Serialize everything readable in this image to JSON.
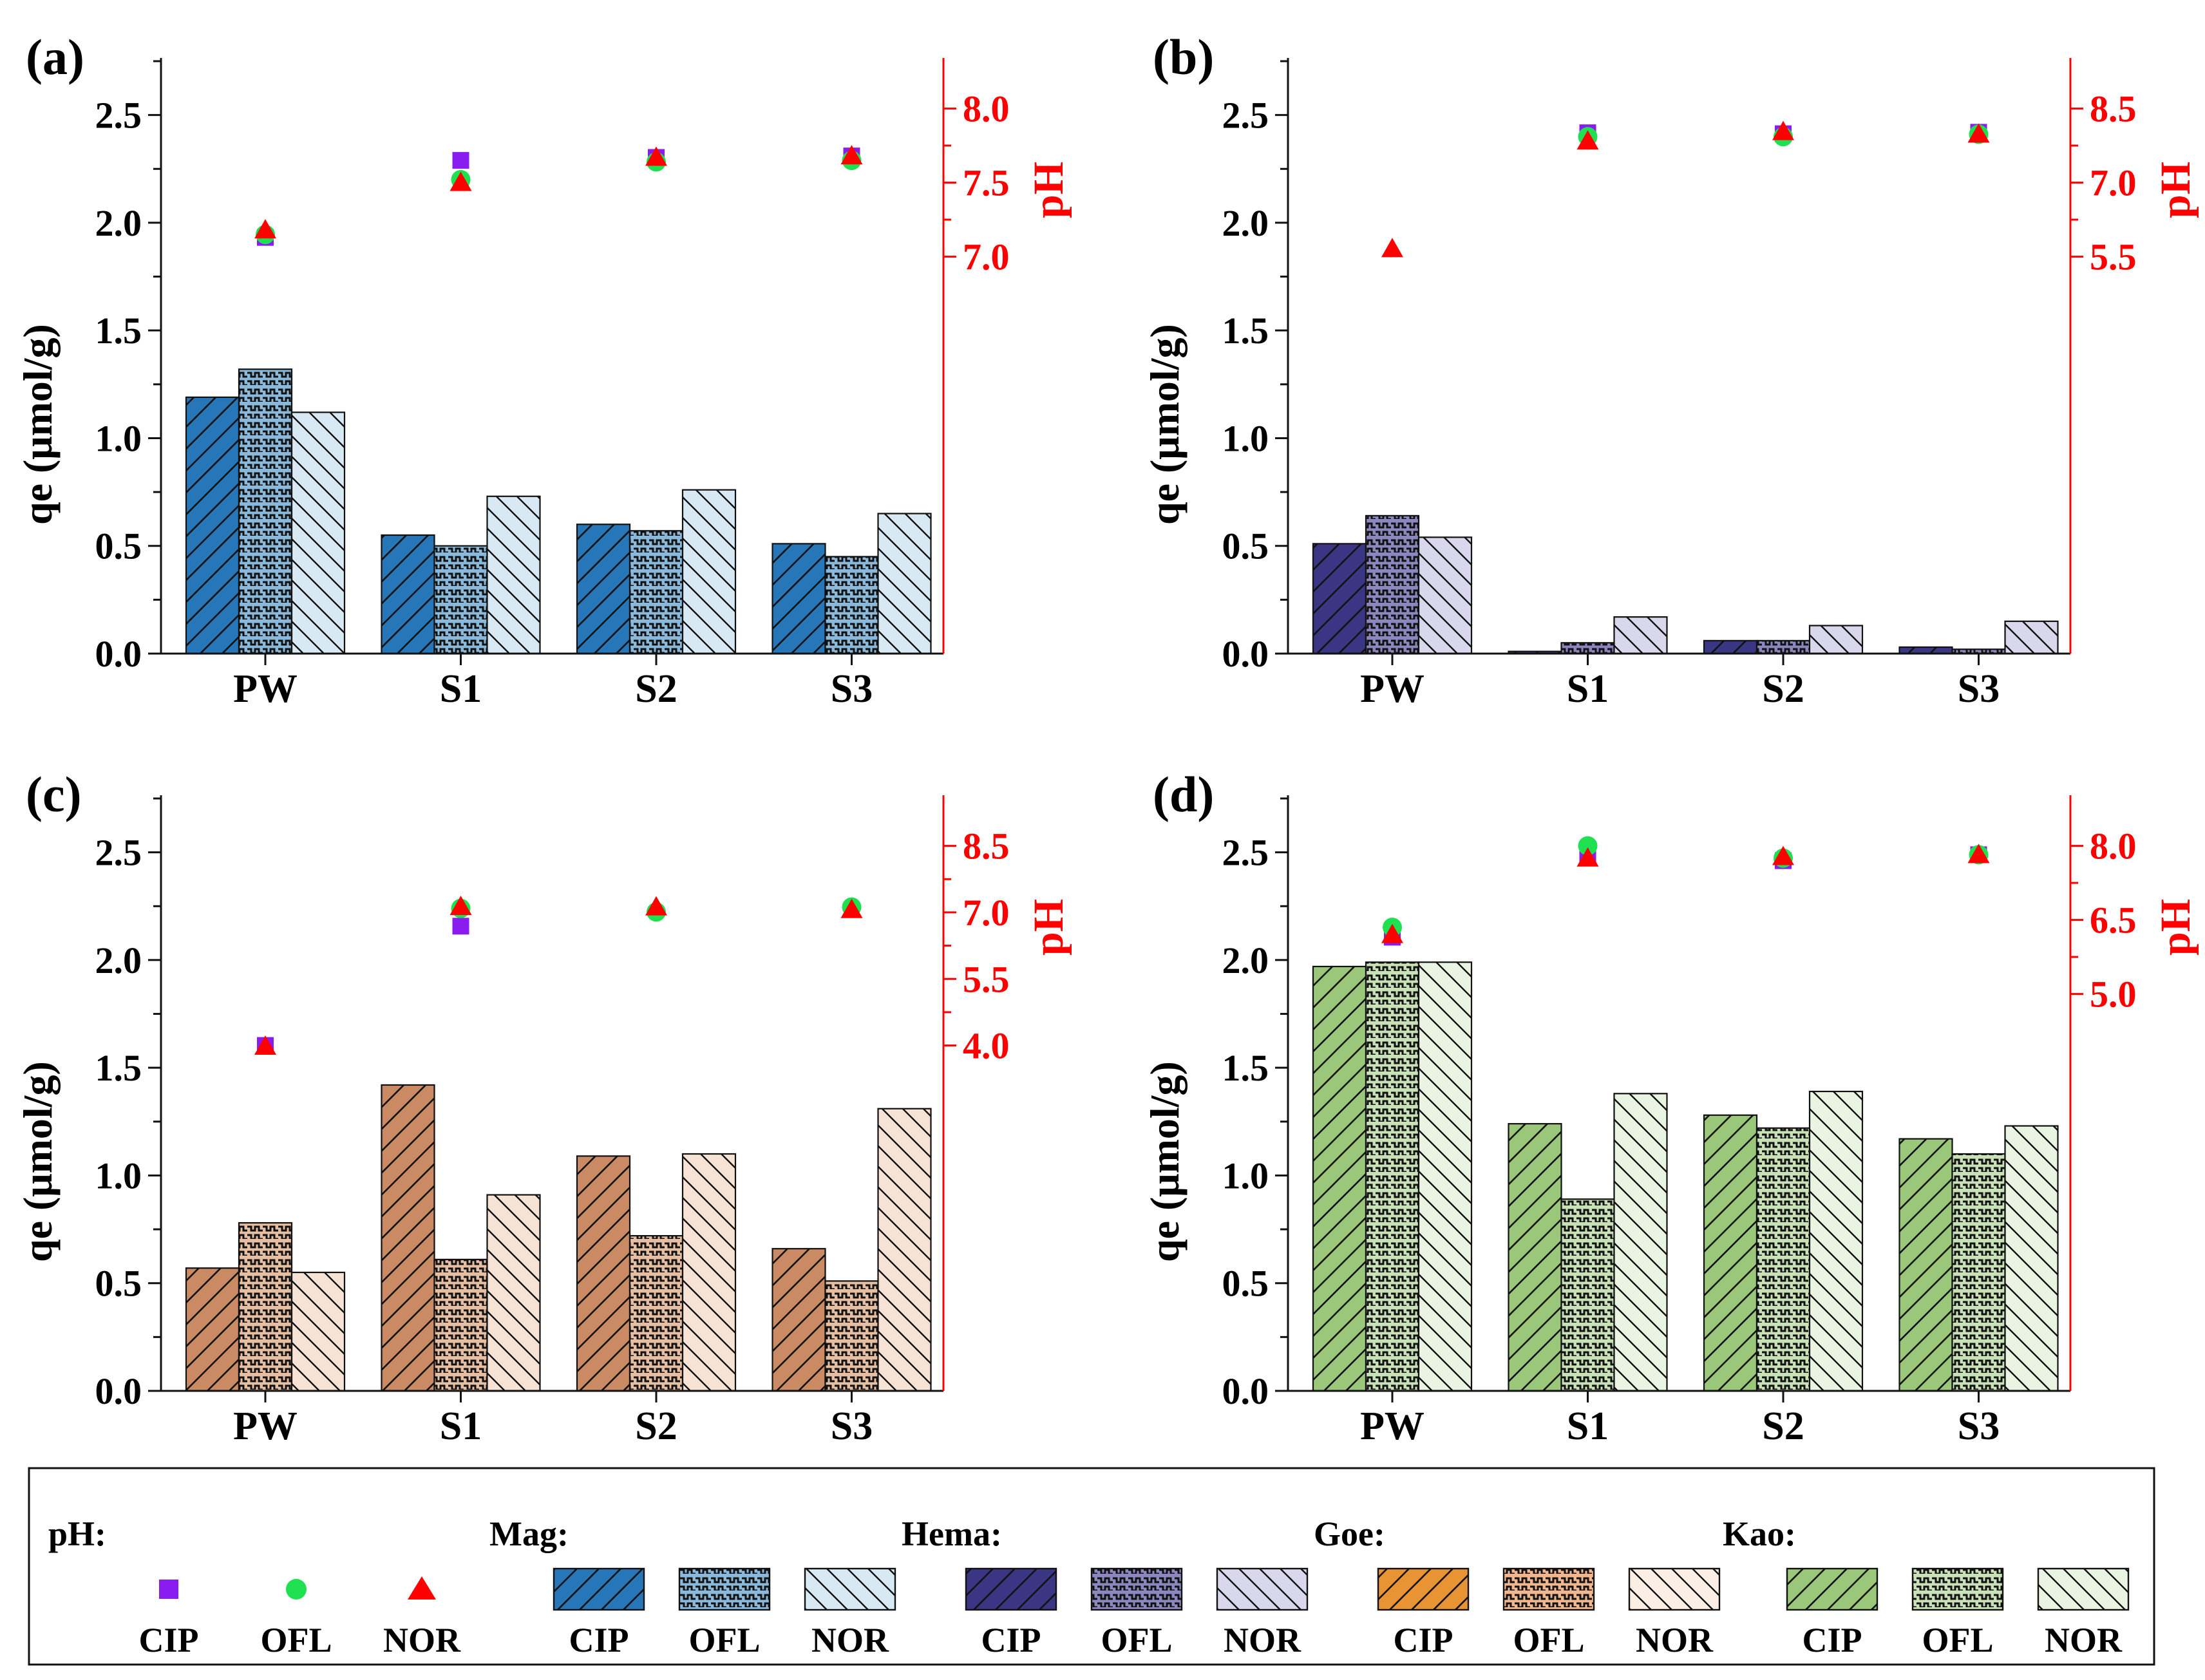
{
  "colors": {
    "ph_axis": "#ff0000",
    "mineral_fills": {
      "Mag": [
        "#2676b8",
        "#8ab9dc",
        "#d8e9f3"
      ],
      "Hema": [
        "#3a3684",
        "#8c88bf",
        "#d9d7eb"
      ],
      "Goe": [
        "#c98a64",
        "#e6bfa3",
        "#f6e3d6"
      ],
      "Kao": [
        "#9ac77a",
        "#c9e1b7",
        "#eaf4e2"
      ]
    },
    "legend_goe_fills": [
      "#e99434",
      "#f0b78e",
      "#fbeee4"
    ],
    "markers": {
      "CIP": "#8b1cf0",
      "OFL": "#1ee050",
      "NOR": "#ff0000"
    }
  },
  "chart_data": [
    {
      "type": "bar",
      "panel_label": "(a)",
      "mineral": "Mag",
      "categories": [
        "PW",
        "S1",
        "S2",
        "S3"
      ],
      "ylabel": "qe (μmol/g)",
      "ylim": [
        0,
        2.75
      ],
      "yticks": [
        "0.0",
        "0.5",
        "1.0",
        "1.5",
        "2.0",
        "2.5"
      ],
      "series": [
        {
          "name": "CIP",
          "values": [
            1.19,
            0.55,
            0.6,
            0.51
          ]
        },
        {
          "name": "OFL",
          "values": [
            1.32,
            0.5,
            0.57,
            0.45
          ]
        },
        {
          "name": "NOR",
          "values": [
            1.12,
            0.73,
            0.76,
            0.65
          ]
        }
      ],
      "ph": {
        "ylabel": "pH",
        "yticks": [
          "7.0",
          "7.5",
          "8.0"
        ],
        "tick_values": [
          7.0,
          7.5,
          8.0
        ],
        "points": [
          {
            "name": "CIP",
            "values": [
              7.13,
              7.65,
              7.67,
              7.68
            ]
          },
          {
            "name": "OFL",
            "values": [
              7.15,
              7.52,
              7.64,
              7.65
            ]
          },
          {
            "name": "NOR",
            "values": [
              7.18,
              7.5,
              7.67,
              7.68
            ]
          }
        ]
      }
    },
    {
      "type": "bar",
      "panel_label": "(b)",
      "mineral": "Hema",
      "categories": [
        "PW",
        "S1",
        "S2",
        "S3"
      ],
      "ylabel": "qe (μmol/g)",
      "ylim": [
        0,
        2.75
      ],
      "yticks": [
        "0.0",
        "0.5",
        "1.0",
        "1.5",
        "2.0",
        "2.5"
      ],
      "series": [
        {
          "name": "CIP",
          "values": [
            0.51,
            0.01,
            0.06,
            0.03
          ]
        },
        {
          "name": "OFL",
          "values": [
            0.64,
            0.05,
            0.06,
            0.02
          ]
        },
        {
          "name": "NOR",
          "values": [
            0.54,
            0.17,
            0.13,
            0.15
          ]
        }
      ],
      "ph": {
        "ylabel": "pH",
        "yticks": [
          "5.5",
          "7.0",
          "8.5"
        ],
        "tick_values": [
          5.5,
          7.0,
          8.5
        ],
        "points": [
          {
            "name": "CIP",
            "values": [
              null,
              8.01,
              7.99,
              8.02
            ]
          },
          {
            "name": "OFL",
            "values": [
              null,
              7.93,
              7.93,
              7.98
            ]
          },
          {
            "name": "NOR",
            "values": [
              5.66,
              7.84,
              8.03,
              7.98
            ]
          }
        ]
      }
    },
    {
      "type": "bar",
      "panel_label": "(c)",
      "mineral": "Goe",
      "categories": [
        "PW",
        "S1",
        "S2",
        "S3"
      ],
      "ylabel": "qe (μmol/g)",
      "ylim": [
        0,
        2.75
      ],
      "yticks": [
        "0.0",
        "0.5",
        "1.0",
        "1.5",
        "2.0",
        "2.5"
      ],
      "series": [
        {
          "name": "CIP",
          "values": [
            0.57,
            1.42,
            1.09,
            0.66
          ]
        },
        {
          "name": "OFL",
          "values": [
            0.78,
            0.61,
            0.72,
            0.51
          ]
        },
        {
          "name": "NOR",
          "values": [
            0.55,
            0.91,
            1.1,
            1.31
          ]
        }
      ],
      "ph": {
        "ylabel": "pH",
        "yticks": [
          "4.0",
          "5.5",
          "7.0",
          "8.5"
        ],
        "tick_values": [
          4.0,
          5.5,
          7.0,
          8.5
        ],
        "points": [
          {
            "name": "CIP",
            "values": [
              4.0,
              6.69,
              null,
              null
            ]
          },
          {
            "name": "OFL",
            "values": [
              null,
              7.09,
              7.01,
              7.12
            ]
          },
          {
            "name": "NOR",
            "values": [
              3.98,
              7.13,
              7.12,
              7.06
            ]
          }
        ]
      }
    },
    {
      "type": "bar",
      "panel_label": "(d)",
      "mineral": "Kao",
      "categories": [
        "PW",
        "S1",
        "S2",
        "S3"
      ],
      "ylabel": "qe (μmol/g)",
      "ylim": [
        0,
        2.75
      ],
      "yticks": [
        "0.0",
        "0.5",
        "1.0",
        "1.5",
        "2.0",
        "2.5"
      ],
      "series": [
        {
          "name": "CIP",
          "values": [
            1.97,
            1.24,
            1.28,
            1.17
          ]
        },
        {
          "name": "OFL",
          "values": [
            1.99,
            0.89,
            1.22,
            1.1
          ]
        },
        {
          "name": "NOR",
          "values": [
            1.99,
            1.38,
            1.39,
            1.23
          ]
        }
      ],
      "ph": {
        "ylabel": "pH",
        "yticks": [
          "5.0",
          "6.5",
          "8.0"
        ],
        "tick_values": [
          5.0,
          6.5,
          8.0
        ],
        "points": [
          {
            "name": "CIP",
            "values": [
              6.15,
              7.8,
              7.7,
              7.82
            ]
          },
          {
            "name": "OFL",
            "values": [
              6.35,
              8.0,
              7.75,
              7.82
            ]
          },
          {
            "name": "NOR",
            "values": [
              6.2,
              7.75,
              7.78,
              7.82
            ]
          }
        ]
      }
    }
  ],
  "legend": {
    "ph_title": "pH:",
    "marker_labels": [
      "CIP",
      "OFL",
      "NOR"
    ],
    "groups": [
      {
        "title": "Mag:",
        "key": "Mag",
        "labels": [
          "CIP",
          "OFL",
          "NOR"
        ]
      },
      {
        "title": "Hema:",
        "key": "Hema",
        "labels": [
          "CIP",
          "OFL",
          "NOR"
        ]
      },
      {
        "title": "Goe:",
        "key": "Goe",
        "labels": [
          "CIP",
          "OFL",
          "NOR"
        ]
      },
      {
        "title": "Kao:",
        "key": "Kao",
        "labels": [
          "CIP",
          "OFL",
          "NOR"
        ]
      }
    ]
  }
}
